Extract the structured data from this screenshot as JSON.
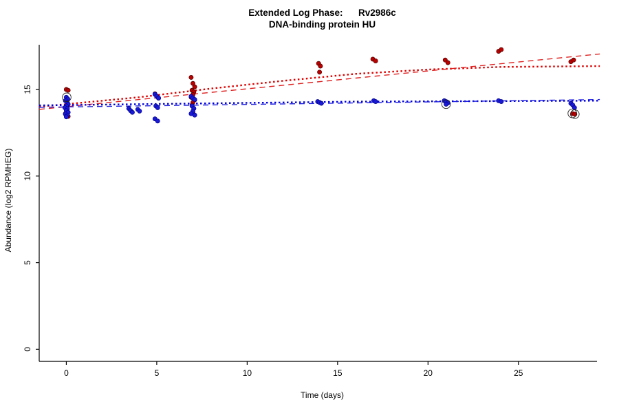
{
  "figure": {
    "background": "#ffffff"
  },
  "chart_data": {
    "type": "scatter",
    "title_line1": "Extended Log Phase:      Rv2986c",
    "title_line2": "DNA-binding protein HU",
    "xlabel": "Time  (days)",
    "ylabel": "Abundance  (log2 RPMHEG)",
    "xlim": [
      -1.5,
      29.8
    ],
    "ylim": [
      -0.7,
      17.9
    ],
    "xticks": [
      0,
      5,
      10,
      15,
      20,
      25
    ],
    "yticks": [
      0,
      5,
      10,
      15
    ],
    "grid": false,
    "legend": "none",
    "axis_color": "#000000",
    "tick_font_px": 12,
    "series": [
      {
        "name": "red-points",
        "fill": "#bb0000",
        "stroke": "#4d0000",
        "points": [
          [
            0.0,
            15.0
          ],
          [
            0.1,
            14.95
          ],
          [
            0.0,
            13.95
          ],
          [
            -0.05,
            13.6
          ],
          [
            0.05,
            13.5
          ],
          [
            0.1,
            13.45
          ],
          [
            4.9,
            14.75
          ],
          [
            5.0,
            14.6
          ],
          [
            5.1,
            14.5
          ],
          [
            6.9,
            15.7
          ],
          [
            7.0,
            15.35
          ],
          [
            7.1,
            15.15
          ],
          [
            6.95,
            14.95
          ],
          [
            7.05,
            14.85
          ],
          [
            7.0,
            14.7
          ],
          [
            6.9,
            14.55
          ],
          [
            7.1,
            14.4
          ],
          [
            7.0,
            14.25
          ],
          [
            6.95,
            14.1
          ],
          [
            7.05,
            13.9
          ],
          [
            7.0,
            13.65
          ],
          [
            13.95,
            16.5
          ],
          [
            14.05,
            16.35
          ],
          [
            14.0,
            16.0
          ],
          [
            16.95,
            16.75
          ],
          [
            17.1,
            16.65
          ],
          [
            20.95,
            16.7
          ],
          [
            21.1,
            16.55
          ],
          [
            23.9,
            17.2
          ],
          [
            24.05,
            17.3
          ],
          [
            27.9,
            16.6
          ],
          [
            28.05,
            16.7
          ],
          [
            28.0,
            13.6
          ],
          [
            28.12,
            13.57
          ]
        ]
      },
      {
        "name": "blue-points",
        "fill": "#1a1ad6",
        "stroke": "#00008b",
        "points": [
          [
            0.0,
            14.55
          ],
          [
            0.08,
            14.45
          ],
          [
            -0.05,
            14.35
          ],
          [
            0.05,
            14.25
          ],
          [
            0.1,
            14.15
          ],
          [
            0.0,
            14.05
          ],
          [
            -0.08,
            13.95
          ],
          [
            0.06,
            13.88
          ],
          [
            0.0,
            13.78
          ],
          [
            0.1,
            13.68
          ],
          [
            -0.05,
            13.58
          ],
          [
            0.05,
            13.5
          ],
          [
            0.0,
            13.42
          ],
          [
            3.45,
            13.9
          ],
          [
            3.55,
            13.78
          ],
          [
            3.65,
            13.68
          ],
          [
            3.95,
            13.85
          ],
          [
            4.05,
            13.75
          ],
          [
            4.9,
            14.72
          ],
          [
            5.0,
            14.6
          ],
          [
            5.1,
            14.5
          ],
          [
            4.95,
            14.05
          ],
          [
            5.05,
            13.95
          ],
          [
            4.9,
            13.3
          ],
          [
            5.05,
            13.18
          ],
          [
            6.9,
            14.6
          ],
          [
            7.0,
            14.5
          ],
          [
            7.1,
            14.42
          ],
          [
            6.95,
            14.05
          ],
          [
            7.05,
            13.9
          ],
          [
            7.0,
            13.75
          ],
          [
            6.9,
            13.6
          ],
          [
            7.1,
            13.52
          ],
          [
            13.9,
            14.3
          ],
          [
            14.0,
            14.25
          ],
          [
            14.1,
            14.2
          ],
          [
            17.0,
            14.35
          ],
          [
            17.1,
            14.3
          ],
          [
            20.9,
            14.35
          ],
          [
            21.0,
            14.3
          ],
          [
            21.1,
            14.22
          ],
          [
            21.0,
            14.15
          ],
          [
            23.9,
            14.35
          ],
          [
            24.05,
            14.3
          ],
          [
            27.9,
            14.2
          ],
          [
            28.0,
            14.1
          ],
          [
            28.1,
            13.95
          ]
        ]
      }
    ],
    "circled_points": [
      [
        0.02,
        14.55
      ],
      [
        21.0,
        14.15
      ],
      [
        27.98,
        13.62
      ],
      [
        28.12,
        13.57
      ]
    ],
    "trend_lines": [
      {
        "name": "red-dotted-fit",
        "color": "#dd0000",
        "style": "dotted",
        "width": 2.4,
        "points": [
          [
            -1.5,
            14.0
          ],
          [
            4,
            14.55
          ],
          [
            8,
            15.05
          ],
          [
            12,
            15.5
          ],
          [
            16,
            15.9
          ],
          [
            20,
            16.15
          ],
          [
            24,
            16.3
          ],
          [
            29.5,
            16.35
          ]
        ]
      },
      {
        "name": "red-dashed-fit",
        "color": "#e02020",
        "style": "dashed",
        "width": 1.4,
        "points": [
          [
            -1.5,
            13.85
          ],
          [
            29.5,
            17.05
          ]
        ]
      },
      {
        "name": "blue-dotted-fit",
        "color": "#0000dd",
        "style": "dotted",
        "width": 2.4,
        "points": [
          [
            -1.5,
            14.08
          ],
          [
            8,
            14.2
          ],
          [
            16,
            14.3
          ],
          [
            29.5,
            14.35
          ]
        ]
      },
      {
        "name": "blue-dashed-fit",
        "color": "#2020e0",
        "style": "dashed",
        "width": 1.4,
        "points": [
          [
            -1.5,
            13.97
          ],
          [
            29.5,
            14.42
          ]
        ]
      }
    ]
  }
}
